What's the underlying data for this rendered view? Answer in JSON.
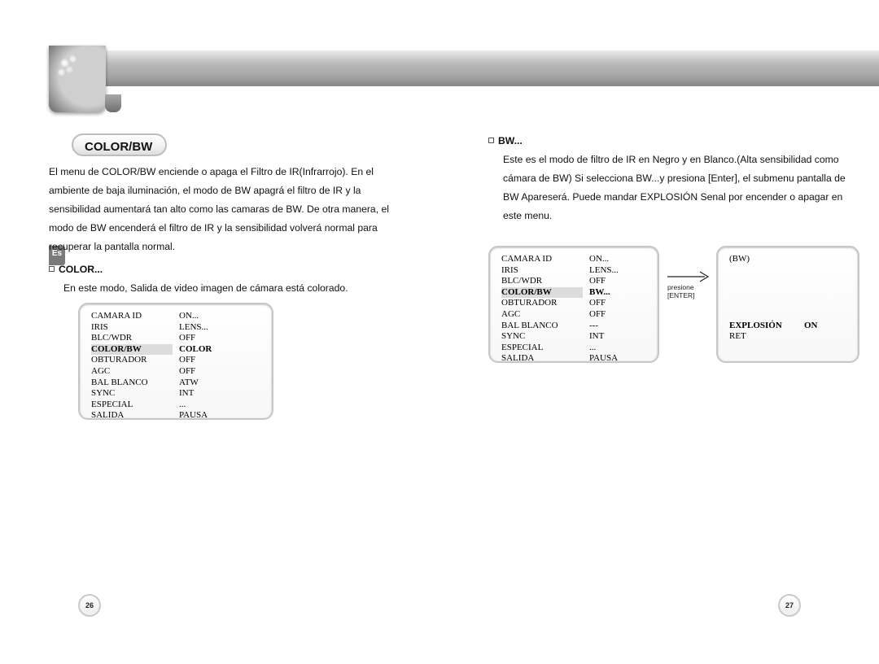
{
  "lang_tab": "Es",
  "left": {
    "title": "COLOR/BW",
    "intro": "El menu de COLOR/BW enciende o apaga el Filtro de IR(Infrarrojo). En el ambiente de baja iluminación, el modo de BW apagrá el filtro de IR y la sensibilidad aumentará tan alto como las camaras de BW. De otra manera, el modo de BW encenderá el filtro de IR y la sensibilidad volverá normal para recuperar la pantalla normal.",
    "color_head": "COLOR...",
    "color_body": "En este modo, Salida de video imagen de cámara está colorado.",
    "menu": {
      "highlight_index": 3,
      "items": [
        {
          "label": "CAMARA ID",
          "value": "ON..."
        },
        {
          "label": "IRIS",
          "value": "LENS..."
        },
        {
          "label": "BLC/WDR",
          "value": "OFF"
        },
        {
          "label": "COLOR/BW",
          "value": "COLOR"
        },
        {
          "label": "OBTURADOR",
          "value": "OFF"
        },
        {
          "label": "AGC",
          "value": "OFF"
        },
        {
          "label": "BAL BLANCO",
          "value": "ATW"
        },
        {
          "label": "SYNC",
          "value": "INT"
        },
        {
          "label": "ESPECIAL",
          "value": "..."
        },
        {
          "label": "SALIDA",
          "value": "PAUSA"
        }
      ]
    },
    "page_number": "26"
  },
  "right": {
    "bw_head": "BW...",
    "bw_body": "Este es el modo de filtro de IR en Negro y en Blanco.(Alta sensibilidad como cámara de BW) Si selecciona BW...y presiona [Enter], el submenu pantalla de BW Apareserá. Puede mandar EXPLOSIÓN Senal por encender o apagar en este menu.",
    "arrow_label1": "presione",
    "arrow_label2": "[ENTER]",
    "menu_main": {
      "highlight_index": 3,
      "items": [
        {
          "label": "CAMARA ID",
          "value": "ON..."
        },
        {
          "label": "IRIS",
          "value": "LENS..."
        },
        {
          "label": "BLC/WDR",
          "value": "OFF"
        },
        {
          "label": "COLOR/BW",
          "value": "BW..."
        },
        {
          "label": "OBTURADOR",
          "value": "OFF"
        },
        {
          "label": "AGC",
          "value": "OFF"
        },
        {
          "label": "BAL BLANCO",
          "value": "---"
        },
        {
          "label": "SYNC",
          "value": "INT"
        },
        {
          "label": "ESPECIAL",
          "value": "..."
        },
        {
          "label": "SALIDA",
          "value": "PAUSA"
        }
      ]
    },
    "menu_sub": {
      "title": "(BW)",
      "bold_index": 0,
      "items": [
        {
          "label": "EXPLOSIÓN",
          "value": "ON"
        },
        {
          "label": "RET",
          "value": ""
        }
      ]
    },
    "page_number": "27"
  },
  "colors": {
    "banner": "#b2b2b2",
    "border": "#c7c7c7",
    "tab": "#7a7a7a",
    "highlight": "#dcdcdc"
  }
}
